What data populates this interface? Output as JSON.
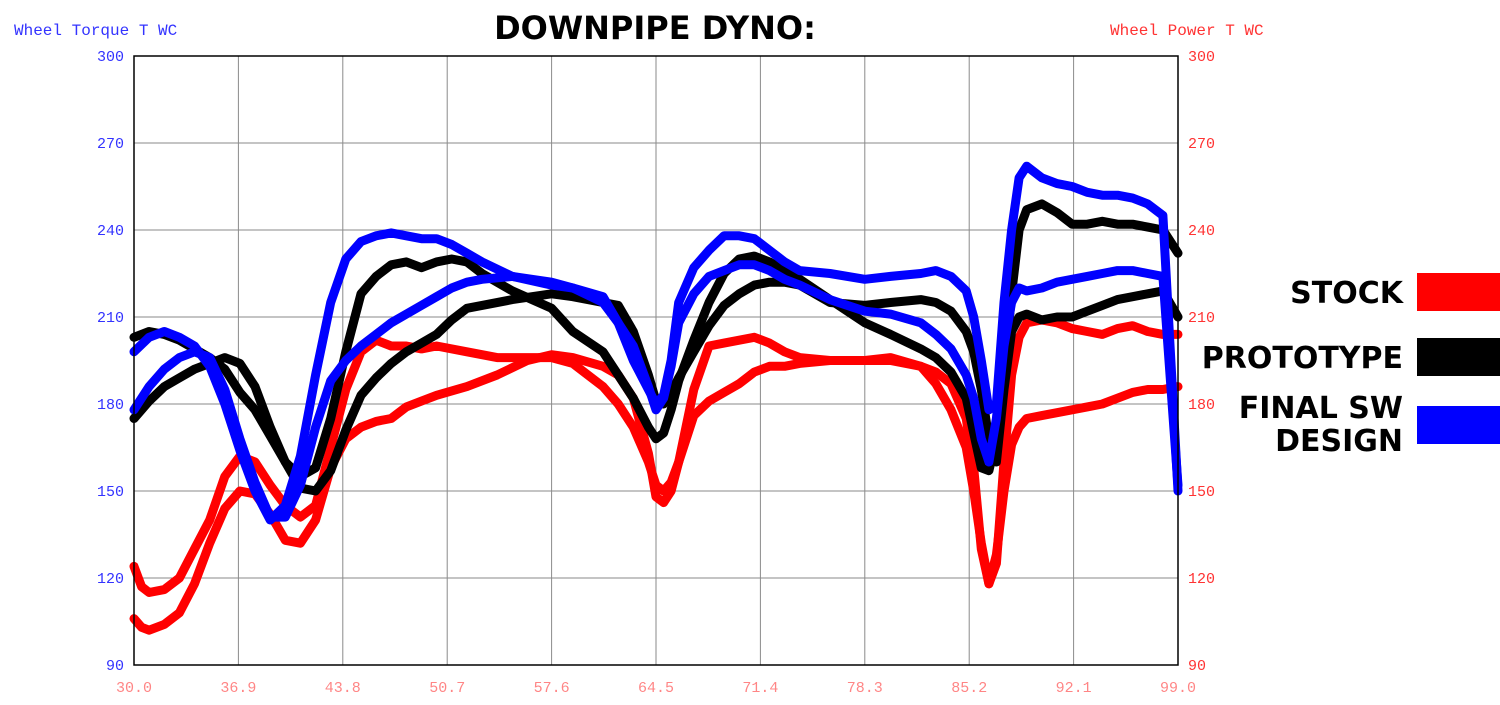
{
  "chart_data": {
    "type": "line",
    "title": "DOWNPIPE DYNO:",
    "left_axis_label": "Wheel Torque T WC",
    "right_axis_label": "Wheel Power T WC",
    "left_axis_color": "#3333ff",
    "right_axis_color": "#ff3333",
    "x_ticks": [
      "30.0",
      "36.9",
      "43.8",
      "50.7",
      "57.6",
      "64.5",
      "71.4",
      "78.3",
      "85.2",
      "92.1",
      "99.0"
    ],
    "y_ticks": [
      "90",
      "120",
      "150",
      "180",
      "210",
      "240",
      "270",
      "300"
    ],
    "xlim": [
      30.0,
      99.0
    ],
    "ylim": [
      90,
      300
    ],
    "grid": true,
    "legend_position": "right",
    "series": [
      {
        "name": "STOCK",
        "color": "#ff0000",
        "curves": [
          {
            "axis": "torque",
            "x": [
              30.0,
              30.5,
              31.0,
              32.0,
              33.0,
              34.0,
              35.0,
              36.0,
              37.0,
              38.0,
              39.0,
              40.0,
              41.0,
              42.0,
              43.0,
              44.0,
              45.0,
              46.0,
              47.0,
              48.0,
              49.0,
              50.0,
              52.0,
              54.0,
              56.0,
              57.6,
              59.0,
              61.0,
              62.0,
              63.0,
              64.0,
              64.5,
              65.0,
              65.5,
              66.0,
              67.0,
              68.0,
              69.0,
              70.0,
              71.0,
              72.0,
              73.0,
              74.0,
              76.0,
              78.3,
              80.0,
              82.0,
              83.0,
              84.0,
              85.0,
              85.5,
              86.0,
              86.5,
              87.0,
              87.5,
              88.0,
              88.5,
              89.0,
              90.0,
              91.0,
              92.0,
              93.0,
              94.0,
              95.0,
              96.0,
              97.0,
              98.0,
              99.0
            ],
            "y": [
              124,
              117,
              115,
              116,
              120,
              130,
              140,
              155,
              162,
              160,
              152,
              145,
              141,
              145,
              165,
              185,
              198,
              202,
              200,
              200,
              199,
              200,
              198,
              196,
              196,
              196,
              194,
              186,
              180,
              172,
              160,
              152,
              150,
              153,
              160,
              185,
              200,
              201,
              202,
              203,
              201,
              198,
              196,
              195,
              195,
              196,
              193,
              191,
              187,
              175,
              158,
              130,
              118,
              125,
              160,
              190,
              203,
              208,
              209,
              208,
              206,
              205,
              204,
              206,
              207,
              205,
              204,
              204
            ]
          },
          {
            "axis": "power",
            "x": [
              30.0,
              30.5,
              31.0,
              32.0,
              33.0,
              34.0,
              35.0,
              36.0,
              37.0,
              38.0,
              39.0,
              40.0,
              41.0,
              42.0,
              43.0,
              44.0,
              45.0,
              46.0,
              47.0,
              48.0,
              49.0,
              50.0,
              52.0,
              54.0,
              56.0,
              57.6,
              59.0,
              61.0,
              62.0,
              63.0,
              64.0,
              64.5,
              65.0,
              65.5,
              66.0,
              67.0,
              68.0,
              69.0,
              70.0,
              71.0,
              72.0,
              73.0,
              74.0,
              76.0,
              78.3,
              80.0,
              82.0,
              83.0,
              84.0,
              85.0,
              85.5,
              86.0,
              86.5,
              87.0,
              87.5,
              88.0,
              88.5,
              89.0,
              90.0,
              91.0,
              92.0,
              93.0,
              94.0,
              95.0,
              96.0,
              97.0,
              98.0,
              99.0
            ],
            "y": [
              106,
              103,
              102,
              104,
              108,
              118,
              132,
              144,
              150,
              149,
              142,
              133,
              132,
              140,
              158,
              168,
              172,
              174,
              175,
              179,
              181,
              183,
              186,
              190,
              195,
              197,
              196,
              193,
              190,
              182,
              163,
              148,
              146,
              150,
              160,
              176,
              181,
              184,
              187,
              191,
              193,
              193,
              194,
              195,
              195,
              195,
              193,
              187,
              178,
              165,
              150,
              132,
              118,
              128,
              150,
              166,
              172,
              175,
              176,
              177,
              178,
              179,
              180,
              182,
              184,
              185,
              185,
              186
            ]
          }
        ]
      },
      {
        "name": "PROTOTYPE",
        "color": "#000000",
        "curves": [
          {
            "axis": "torque",
            "x": [
              30.0,
              31.0,
              32.0,
              33.0,
              34.0,
              35.0,
              36.0,
              37.0,
              38.0,
              39.0,
              40.0,
              41.0,
              42.0,
              43.0,
              44.0,
              45.0,
              46.0,
              47.0,
              48.0,
              49.0,
              50.0,
              51.0,
              52.0,
              53.0,
              55.0,
              57.6,
              59.0,
              61.0,
              62.0,
              63.0,
              64.0,
              64.5,
              65.0,
              65.5,
              66.0,
              67.0,
              68.0,
              69.0,
              70.0,
              71.0,
              72.0,
              73.0,
              74.0,
              76.0,
              78.3,
              80.0,
              82.0,
              83.0,
              84.0,
              85.0,
              85.5,
              86.0,
              86.5,
              87.0,
              87.5,
              88.0,
              88.5,
              89.0,
              90.0,
              91.0,
              92.0,
              93.0,
              94.0,
              95.0,
              96.0,
              97.0,
              98.0,
              99.0
            ],
            "y": [
              203,
              205,
              204,
              202,
              199,
              196,
              192,
              184,
              178,
              169,
              160,
              155,
              158,
              175,
              198,
              218,
              224,
              228,
              229,
              227,
              229,
              230,
              229,
              225,
              219,
              213,
              205,
              198,
              190,
              182,
              172,
              168,
              170,
              178,
              188,
              202,
              215,
              225,
              230,
              231,
              229,
              226,
              223,
              216,
              208,
              204,
              199,
              196,
              191,
              182,
              170,
              158,
              157,
              168,
              188,
              218,
              240,
              247,
              249,
              246,
              242,
              242,
              243,
              242,
              242,
              241,
              240,
              232
            ]
          },
          {
            "axis": "power",
            "x": [
              30.0,
              31.0,
              32.0,
              33.0,
              34.0,
              35.0,
              36.0,
              37.0,
              38.0,
              39.0,
              40.0,
              41.0,
              42.0,
              43.0,
              44.0,
              45.0,
              46.0,
              47.0,
              48.0,
              49.0,
              50.0,
              51.0,
              52.0,
              53.0,
              55.0,
              57.6,
              59.0,
              61.0,
              62.0,
              63.0,
              64.0,
              64.5,
              65.0,
              65.5,
              66.0,
              67.0,
              68.0,
              69.0,
              70.0,
              71.0,
              72.0,
              73.0,
              74.0,
              76.0,
              78.3,
              80.0,
              82.0,
              83.0,
              84.0,
              85.0,
              85.5,
              86.0,
              86.5,
              87.0,
              87.5,
              88.0,
              88.5,
              89.0,
              90.0,
              91.0,
              92.0,
              93.0,
              94.0,
              95.0,
              96.0,
              97.0,
              98.0,
              99.0
            ],
            "y": [
              175,
              181,
              186,
              189,
              192,
              194,
              196,
              194,
              186,
              172,
              160,
              151,
              150,
              157,
              171,
              183,
              189,
              194,
              198,
              201,
              204,
              209,
              213,
              214,
              216,
              218,
              217,
              215,
              214,
              205,
              190,
              181,
              180,
              184,
              189,
              198,
              207,
              214,
              218,
              221,
              222,
              222,
              221,
              215,
              214,
              215,
              216,
              215,
              212,
              205,
              198,
              185,
              168,
              160,
              185,
              205,
              210,
              211,
              209,
              210,
              210,
              212,
              214,
              216,
              217,
              218,
              219,
              210
            ]
          }
        ]
      },
      {
        "name": "FINAL SW DESIGN",
        "color": "#0000ff",
        "curves": [
          {
            "axis": "torque",
            "x": [
              30.0,
              31.0,
              32.0,
              33.0,
              34.0,
              35.0,
              36.0,
              37.0,
              38.0,
              39.0,
              40.0,
              41.0,
              42.0,
              43.0,
              44.0,
              45.0,
              46.0,
              47.0,
              48.0,
              49.0,
              50.0,
              51.0,
              52.0,
              53.0,
              55.0,
              57.6,
              59.0,
              61.0,
              62.0,
              63.0,
              64.0,
              64.5,
              65.0,
              65.5,
              66.0,
              67.0,
              68.0,
              69.0,
              70.0,
              71.0,
              72.0,
              73.0,
              74.0,
              76.0,
              78.3,
              80.0,
              82.0,
              83.0,
              84.0,
              85.0,
              85.5,
              86.0,
              86.5,
              87.0,
              87.5,
              88.0,
              88.5,
              89.0,
              90.0,
              91.0,
              92.0,
              93.0,
              94.0,
              95.0,
              96.0,
              97.0,
              98.0,
              99.0
            ],
            "y": [
              198,
              203,
              205,
              203,
              200,
              193,
              180,
              164,
              150,
              140,
              145,
              162,
              190,
              215,
              230,
              236,
              238,
              239,
              238,
              237,
              237,
              235,
              232,
              229,
              224,
              221,
              220,
              217,
              208,
              195,
              185,
              180,
              183,
              195,
              215,
              227,
              233,
              238,
              238,
              237,
              233,
              229,
              226,
              225,
              223,
              224,
              225,
              226,
              224,
              219,
              210,
              195,
              178,
              180,
              215,
              240,
              258,
              262,
              258,
              256,
              255,
              253,
              252,
              252,
              251,
              249,
              245,
              150
            ]
          },
          {
            "axis": "power",
            "x": [
              30.0,
              31.0,
              32.0,
              33.0,
              34.0,
              35.0,
              36.0,
              37.0,
              38.0,
              39.0,
              40.0,
              41.0,
              42.0,
              43.0,
              44.0,
              45.0,
              46.0,
              47.0,
              48.0,
              49.0,
              50.0,
              51.0,
              52.0,
              53.0,
              55.0,
              57.6,
              59.0,
              61.0,
              62.0,
              63.0,
              64.0,
              64.5,
              65.0,
              65.5,
              66.0,
              67.0,
              68.0,
              69.0,
              70.0,
              71.0,
              72.0,
              73.0,
              74.0,
              76.0,
              78.3,
              80.0,
              82.0,
              83.0,
              84.0,
              85.0,
              85.5,
              86.0,
              86.5,
              87.0,
              87.5,
              88.0,
              88.5,
              89.0,
              90.0,
              91.0,
              92.0,
              93.0,
              94.0,
              95.0,
              96.0,
              97.0,
              98.0,
              99.0
            ],
            "y": [
              178,
              186,
              192,
              196,
              198,
              196,
              185,
              168,
              153,
              141,
              141,
              152,
              172,
              188,
              195,
              200,
              204,
              208,
              211,
              214,
              217,
              220,
              222,
              223,
              224,
              222,
              220,
              215,
              208,
              200,
              186,
              178,
              182,
              193,
              208,
              218,
              224,
              226,
              228,
              228,
              226,
              223,
              221,
              216,
              212,
              211,
              208,
              204,
              199,
              190,
              182,
              168,
              160,
              175,
              200,
              215,
              220,
              219,
              220,
              222,
              223,
              224,
              225,
              226,
              226,
              225,
              224,
              152
            ]
          }
        ]
      }
    ]
  }
}
